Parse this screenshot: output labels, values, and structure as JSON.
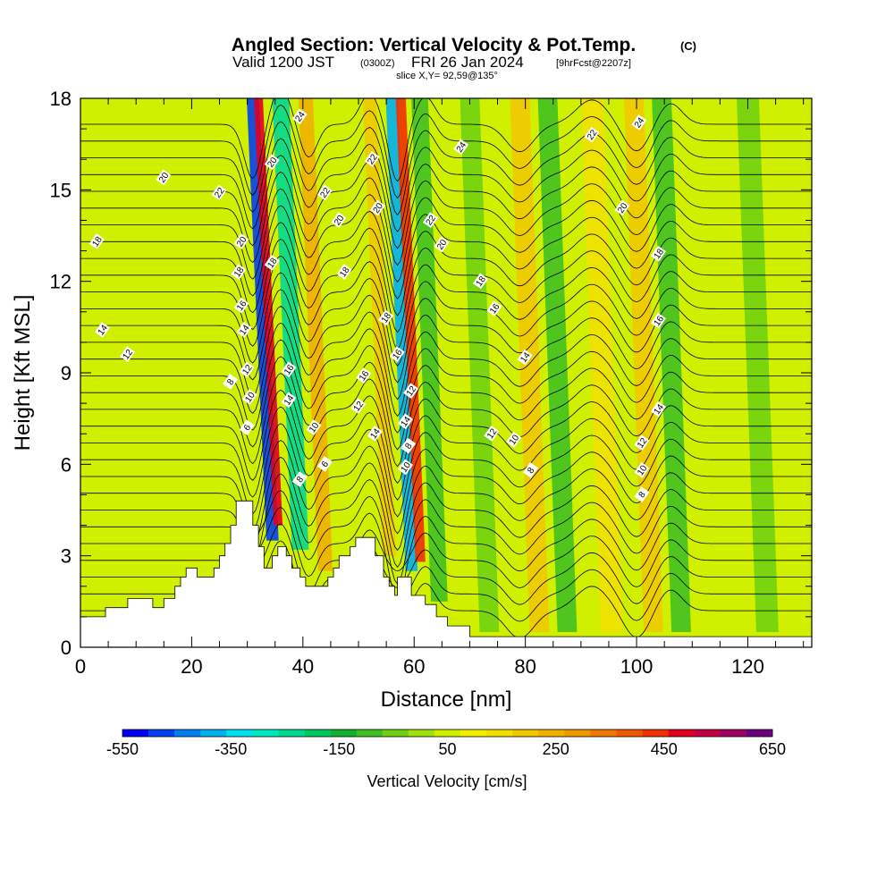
{
  "title": {
    "main": "Angled Section: Vertical Velocity & Pot.Temp.",
    "main_tag": "(C)",
    "valid_prefix": "Valid 1200 JST",
    "valid_zulu": "(0300Z)",
    "valid_date": "FRI 26 Jan 2024",
    "forecast": "[9hrFcst@2207z]",
    "slice": "slice X,Y= 92,59@135°"
  },
  "chart_data": {
    "type": "heatmap",
    "xlabel": "Distance [nm]",
    "ylabel": "Height [Kft MSL]",
    "xlim": [
      0,
      131.5
    ],
    "ylim": [
      0,
      18
    ],
    "x_ticks": [
      "0",
      "20",
      "40",
      "60",
      "80",
      "100",
      "120"
    ],
    "x_tick_values": [
      0,
      20,
      40,
      60,
      80,
      100,
      120
    ],
    "y_ticks": [
      "0",
      "3",
      "6",
      "9",
      "12",
      "15",
      "18"
    ],
    "y_tick_values": [
      0,
      3,
      6,
      9,
      12,
      15,
      18
    ],
    "terrain_profile": [
      [
        0,
        1.0
      ],
      [
        4.5,
        1.0
      ],
      [
        4.5,
        1.3
      ],
      [
        8.5,
        1.3
      ],
      [
        8.5,
        1.6
      ],
      [
        13,
        1.6
      ],
      [
        13,
        1.3
      ],
      [
        15,
        1.3
      ],
      [
        15,
        1.6
      ],
      [
        17,
        1.6
      ],
      [
        17,
        2.0
      ],
      [
        18,
        2.0
      ],
      [
        18,
        2.3
      ],
      [
        19,
        2.3
      ],
      [
        19,
        2.6
      ],
      [
        21,
        2.6
      ],
      [
        21,
        2.3
      ],
      [
        24,
        2.3
      ],
      [
        24,
        2.6
      ],
      [
        25,
        2.6
      ],
      [
        25,
        3.0
      ],
      [
        26,
        3.0
      ],
      [
        26,
        3.4
      ],
      [
        27,
        3.4
      ],
      [
        27,
        4.0
      ],
      [
        28,
        4.0
      ],
      [
        28,
        4.8
      ],
      [
        31,
        4.8
      ],
      [
        31,
        4.0
      ],
      [
        32,
        4.0
      ],
      [
        32,
        3.3
      ],
      [
        33,
        3.3
      ],
      [
        33,
        2.6
      ],
      [
        34.5,
        2.6
      ],
      [
        34.5,
        3.0
      ],
      [
        35.5,
        3.0
      ],
      [
        35.5,
        3.3
      ],
      [
        37,
        3.3
      ],
      [
        37,
        3.0
      ],
      [
        38,
        3.0
      ],
      [
        38,
        2.6
      ],
      [
        39.5,
        2.6
      ],
      [
        39.5,
        2.3
      ],
      [
        40.5,
        2.3
      ],
      [
        40.5,
        2.0
      ],
      [
        44.5,
        2.0
      ],
      [
        44.5,
        2.3
      ],
      [
        45.5,
        2.3
      ],
      [
        45.5,
        2.6
      ],
      [
        46.5,
        2.6
      ],
      [
        46.5,
        3.0
      ],
      [
        48.5,
        3.0
      ],
      [
        48.5,
        3.3
      ],
      [
        49.5,
        3.3
      ],
      [
        49.5,
        3.6
      ],
      [
        53,
        3.6
      ],
      [
        53,
        3.0
      ],
      [
        54.5,
        3.0
      ],
      [
        54.5,
        2.3
      ],
      [
        55.5,
        2.3
      ],
      [
        55.5,
        2.0
      ],
      [
        56.5,
        2.0
      ],
      [
        56.5,
        1.7
      ],
      [
        57,
        1.7
      ],
      [
        57,
        2.3
      ],
      [
        59.5,
        2.3
      ],
      [
        59.5,
        1.7
      ],
      [
        62,
        1.7
      ],
      [
        62,
        1.4
      ],
      [
        64,
        1.4
      ],
      [
        64,
        1.0
      ],
      [
        66,
        1.0
      ],
      [
        66,
        0.7
      ],
      [
        70,
        0.7
      ],
      [
        70,
        0.35
      ],
      [
        131.5,
        0.35
      ]
    ],
    "colorbar": {
      "title": "Vertical Velocity [cm/s]",
      "ticks": [
        "-550",
        "-350",
        "-150",
        "50",
        "250",
        "450",
        "650"
      ],
      "tick_values": [
        -550,
        -350,
        -150,
        50,
        250,
        450,
        650
      ],
      "min": -550,
      "max": 650,
      "step": 50,
      "colors": [
        "#0000f0",
        "#0040f0",
        "#0080f0",
        "#00b0f0",
        "#00e0f0",
        "#00e8c0",
        "#00d890",
        "#00c860",
        "#10b030",
        "#40c020",
        "#70d010",
        "#a0e010",
        "#d0f000",
        "#f0f000",
        "#f0e000",
        "#f0c800",
        "#f0b000",
        "#f09800",
        "#f07800",
        "#f05800",
        "#f03000",
        "#e00020",
        "#c00040",
        "#a00060",
        "#6a007a"
      ]
    },
    "vertical_velocity_bands": [
      {
        "x": 31.0,
        "width": 2.2,
        "value": -500,
        "bottom": 3.5
      },
      {
        "x": 32.0,
        "width": 1.6,
        "value": 500,
        "bottom": 4.0
      },
      {
        "x": 36.0,
        "width": 3.0,
        "value": -250,
        "bottom": 3.2
      },
      {
        "x": 40.5,
        "width": 2.6,
        "value": 250,
        "bottom": 2.5
      },
      {
        "x": 52.0,
        "width": 2.4,
        "value": 200,
        "bottom": 3.0
      },
      {
        "x": 56.0,
        "width": 2.2,
        "value": -400,
        "bottom": 2.5
      },
      {
        "x": 57.6,
        "width": 1.8,
        "value": 450,
        "bottom": 2.8
      },
      {
        "x": 61.0,
        "width": 3.0,
        "value": -100,
        "bottom": 1.5
      },
      {
        "x": 70.0,
        "width": 3.5,
        "value": -50,
        "bottom": 0.5
      },
      {
        "x": 79.0,
        "width": 3.5,
        "value": 200,
        "bottom": 0.5
      },
      {
        "x": 84.0,
        "width": 3.5,
        "value": -100,
        "bottom": 0.5
      },
      {
        "x": 92.0,
        "width": 4.0,
        "value": 150,
        "bottom": 0.5
      },
      {
        "x": 99.5,
        "width": 3.5,
        "value": 200,
        "bottom": 0.5
      },
      {
        "x": 104.5,
        "width": 3.5,
        "value": -100,
        "bottom": 0.5
      },
      {
        "x": 120.0,
        "width": 4.0,
        "value": -50,
        "bottom": 0.5
      }
    ],
    "potential_temperature_contours_C": [
      6,
      8,
      10,
      12,
      14,
      16,
      18,
      20,
      22,
      24
    ],
    "contour_labels": [
      {
        "text": "20",
        "x": 15,
        "y": 15.4
      },
      {
        "text": "18",
        "x": 3,
        "y": 13.3
      },
      {
        "text": "14",
        "x": 4,
        "y": 10.4
      },
      {
        "text": "12",
        "x": 8.5,
        "y": 9.6
      },
      {
        "text": "22",
        "x": 25,
        "y": 14.9
      },
      {
        "text": "20",
        "x": 29,
        "y": 13.3
      },
      {
        "text": "18",
        "x": 28.5,
        "y": 12.3
      },
      {
        "text": "16",
        "x": 29,
        "y": 11.2
      },
      {
        "text": "14",
        "x": 29.5,
        "y": 10.4
      },
      {
        "text": "12",
        "x": 30,
        "y": 9.1
      },
      {
        "text": "10",
        "x": 30.5,
        "y": 8.2
      },
      {
        "text": "8",
        "x": 27,
        "y": 8.7
      },
      {
        "text": "6",
        "x": 30,
        "y": 7.2
      },
      {
        "text": "24",
        "x": 39.5,
        "y": 17.4
      },
      {
        "text": "20",
        "x": 34.5,
        "y": 15.9
      },
      {
        "text": "18",
        "x": 34.5,
        "y": 12.6
      },
      {
        "text": "16",
        "x": 37.5,
        "y": 9.1
      },
      {
        "text": "14",
        "x": 37.5,
        "y": 8.1
      },
      {
        "text": "10",
        "x": 42,
        "y": 7.2
      },
      {
        "text": "8",
        "x": 39.5,
        "y": 5.5
      },
      {
        "text": "6",
        "x": 44,
        "y": 6.0
      },
      {
        "text": "22",
        "x": 44,
        "y": 14.9
      },
      {
        "text": "20",
        "x": 46.5,
        "y": 14.0
      },
      {
        "text": "18",
        "x": 47.5,
        "y": 12.3
      },
      {
        "text": "22",
        "x": 52.5,
        "y": 16.0
      },
      {
        "text": "20",
        "x": 53.5,
        "y": 14.4
      },
      {
        "text": "18",
        "x": 55,
        "y": 10.8
      },
      {
        "text": "16",
        "x": 51,
        "y": 8.9
      },
      {
        "text": "12",
        "x": 50,
        "y": 7.9
      },
      {
        "text": "14",
        "x": 53,
        "y": 7.0
      },
      {
        "text": "16",
        "x": 57,
        "y": 9.6
      },
      {
        "text": "12",
        "x": 59.5,
        "y": 8.4
      },
      {
        "text": "14",
        "x": 58.5,
        "y": 7.4
      },
      {
        "text": "8",
        "x": 59,
        "y": 6.6
      },
      {
        "text": "10",
        "x": 58.5,
        "y": 5.9
      },
      {
        "text": "22",
        "x": 63,
        "y": 14.0
      },
      {
        "text": "20",
        "x": 65,
        "y": 13.2
      },
      {
        "text": "24",
        "x": 68.5,
        "y": 16.4
      },
      {
        "text": "18",
        "x": 72,
        "y": 12.0
      },
      {
        "text": "16",
        "x": 74.5,
        "y": 11.1
      },
      {
        "text": "14",
        "x": 80,
        "y": 9.5
      },
      {
        "text": "12",
        "x": 74,
        "y": 7.0
      },
      {
        "text": "10",
        "x": 78,
        "y": 6.8
      },
      {
        "text": "8",
        "x": 81,
        "y": 5.8
      },
      {
        "text": "22",
        "x": 92,
        "y": 16.8
      },
      {
        "text": "24",
        "x": 100.5,
        "y": 17.2
      },
      {
        "text": "20",
        "x": 97.5,
        "y": 14.4
      },
      {
        "text": "18",
        "x": 104,
        "y": 12.9
      },
      {
        "text": "16",
        "x": 104,
        "y": 10.7
      },
      {
        "text": "14",
        "x": 104,
        "y": 7.8
      },
      {
        "text": "12",
        "x": 101,
        "y": 6.7
      },
      {
        "text": "10",
        "x": 101,
        "y": 5.8
      },
      {
        "text": "8",
        "x": 101,
        "y": 5.0
      }
    ]
  }
}
